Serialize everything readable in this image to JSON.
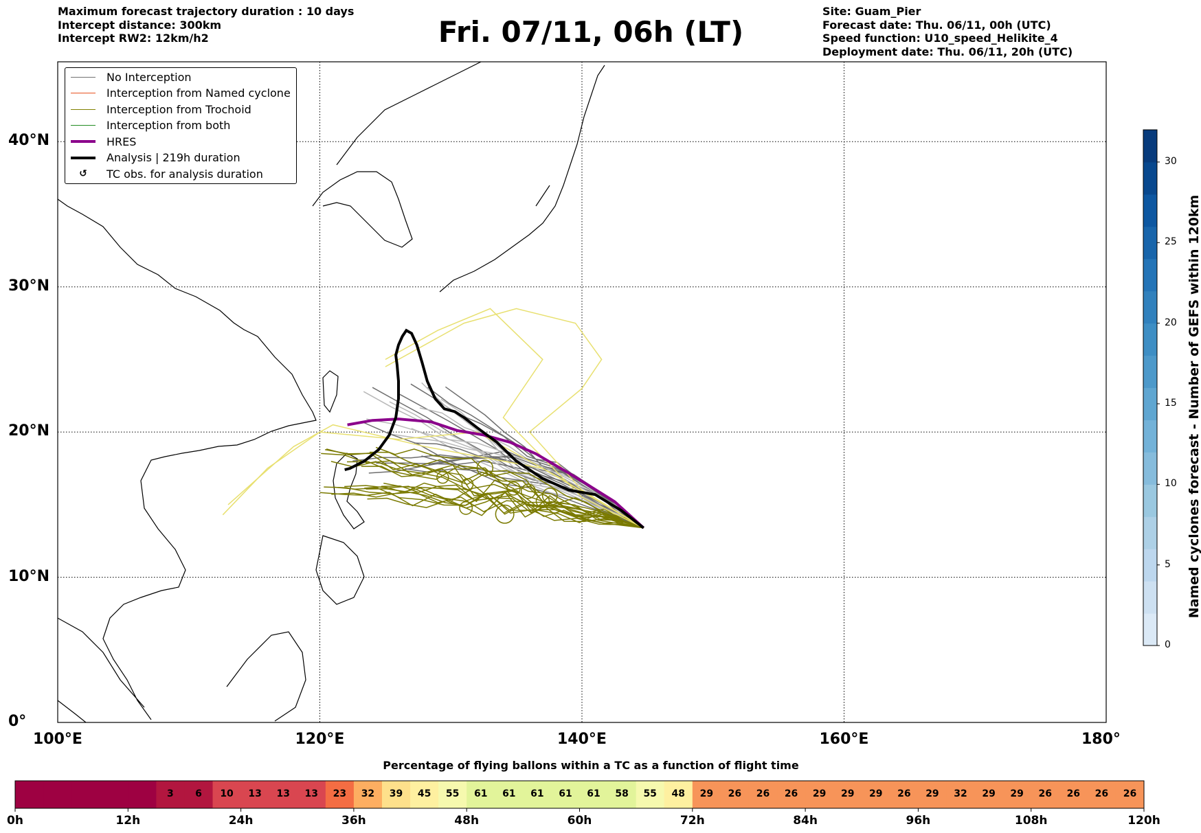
{
  "header_left": [
    "Maximum forecast trajectory duration : 10 days",
    "Intercept distance: 300km",
    "Intercept RW2: 12km/h2"
  ],
  "title": "Fri. 07/11, 06h (LT)",
  "header_right": [
    "Site: Guam_Pier",
    "Forecast date: Thu. 06/11, 00h (UTC)",
    "Speed function: U10_speed_Helikite_4",
    "Deployment date: Thu. 06/11, 20h (UTC)"
  ],
  "map": {
    "lon_labels": [
      "100°E",
      "120°E",
      "140°E",
      "160°E",
      "180°"
    ],
    "lat_labels": [
      "0°",
      "10°N",
      "20°N",
      "30°N",
      "40°N"
    ],
    "gridline_lons": [
      120,
      140,
      160
    ],
    "gridline_lats": [
      10,
      20,
      30,
      40
    ],
    "extent": {
      "lon": [
        100,
        180
      ],
      "lat": [
        0,
        45.5
      ]
    }
  },
  "legend": [
    {
      "label": "No Interception",
      "color": "#707070",
      "kind": "thin"
    },
    {
      "label": "Interception from Named cyclone",
      "color": "#e8501e",
      "kind": "thin"
    },
    {
      "label": "Interception from Trochoid",
      "color": "#808000",
      "kind": "thin"
    },
    {
      "label": "Interception from both",
      "color": "#228b22",
      "kind": "thin"
    },
    {
      "label": "HRES",
      "color": "#8b008b",
      "kind": "thick"
    },
    {
      "label": "Analysis | 219h duration",
      "color": "#000000",
      "kind": "thick"
    },
    {
      "label": "TC obs. for analysis duration",
      "color": "#000000",
      "kind": "marker",
      "marker": "↺"
    }
  ],
  "colorbar": {
    "title": "Named cyclones forecast - Number of GEFS within 120km",
    "ticks": [
      "0",
      "5",
      "10",
      "15",
      "20",
      "25",
      "30"
    ],
    "max": 32,
    "colors": [
      "#dbe9f6",
      "#cde0f1",
      "#bdd7ee",
      "#add0e6",
      "#9ac8e0",
      "#86bcdc",
      "#73b2d8",
      "#5fa6d1",
      "#4d99ca",
      "#3e8ec4",
      "#3181bd",
      "#2474b7",
      "#1865ab",
      "#0d57a1",
      "#08488e",
      "#083b7c"
    ]
  },
  "trajectories": {
    "start": [
      144.7,
      13.4
    ],
    "analysis": [
      [
        144.7,
        13.4
      ],
      [
        143,
        14.6
      ],
      [
        141,
        15.7
      ],
      [
        139,
        16
      ],
      [
        137,
        16.8
      ],
      [
        135,
        18
      ],
      [
        133.5,
        19.3
      ],
      [
        132,
        20.3
      ],
      [
        131,
        21
      ],
      [
        130.3,
        21.4
      ],
      [
        129.5,
        21.6
      ],
      [
        128.8,
        22.3
      ],
      [
        128.2,
        23.5
      ],
      [
        127.8,
        24.8
      ],
      [
        127.4,
        26
      ],
      [
        127,
        26.8
      ],
      [
        126.6,
        27
      ],
      [
        126.3,
        26.6
      ],
      [
        126,
        26
      ],
      [
        125.8,
        25.3
      ],
      [
        125.9,
        24.6
      ],
      [
        126,
        23.5
      ],
      [
        126,
        22.3
      ],
      [
        125.8,
        21
      ],
      [
        125.3,
        19.8
      ],
      [
        124.5,
        18.8
      ],
      [
        123.4,
        18
      ],
      [
        122.3,
        17.5
      ],
      [
        121.9,
        17.4
      ]
    ],
    "hres": [
      [
        144.7,
        13.4
      ],
      [
        142.5,
        15.2
      ],
      [
        139.5,
        16.9
      ],
      [
        136.5,
        18.5
      ],
      [
        134.5,
        19.3
      ],
      [
        132.5,
        19.8
      ],
      [
        130.5,
        20.1
      ],
      [
        128.5,
        20.7
      ],
      [
        126,
        20.9
      ],
      [
        124,
        20.8
      ],
      [
        122.1,
        20.5
      ]
    ]
  },
  "flight_time": {
    "title": "Percentage of flying ballons within a TC as a function of flight time",
    "hour_labels": [
      "0h",
      "12h",
      "24h",
      "36h",
      "48h",
      "60h",
      "72h",
      "84h",
      "96h",
      "108h",
      "120h"
    ],
    "values": [
      null,
      null,
      null,
      null,
      null,
      3,
      6,
      10,
      13,
      13,
      13,
      23,
      32,
      39,
      45,
      55,
      61,
      61,
      61,
      61,
      61,
      58,
      55,
      48,
      29,
      26,
      26,
      26,
      29,
      29,
      29,
      26,
      29,
      32,
      29,
      29,
      26,
      26,
      26,
      26
    ],
    "cmap": [
      "#9e0142",
      "#d53e4f",
      "#f46d43",
      "#fdae61",
      "#fee08b",
      "#ffffbf",
      "#e6f598",
      "#abdda4"
    ]
  }
}
